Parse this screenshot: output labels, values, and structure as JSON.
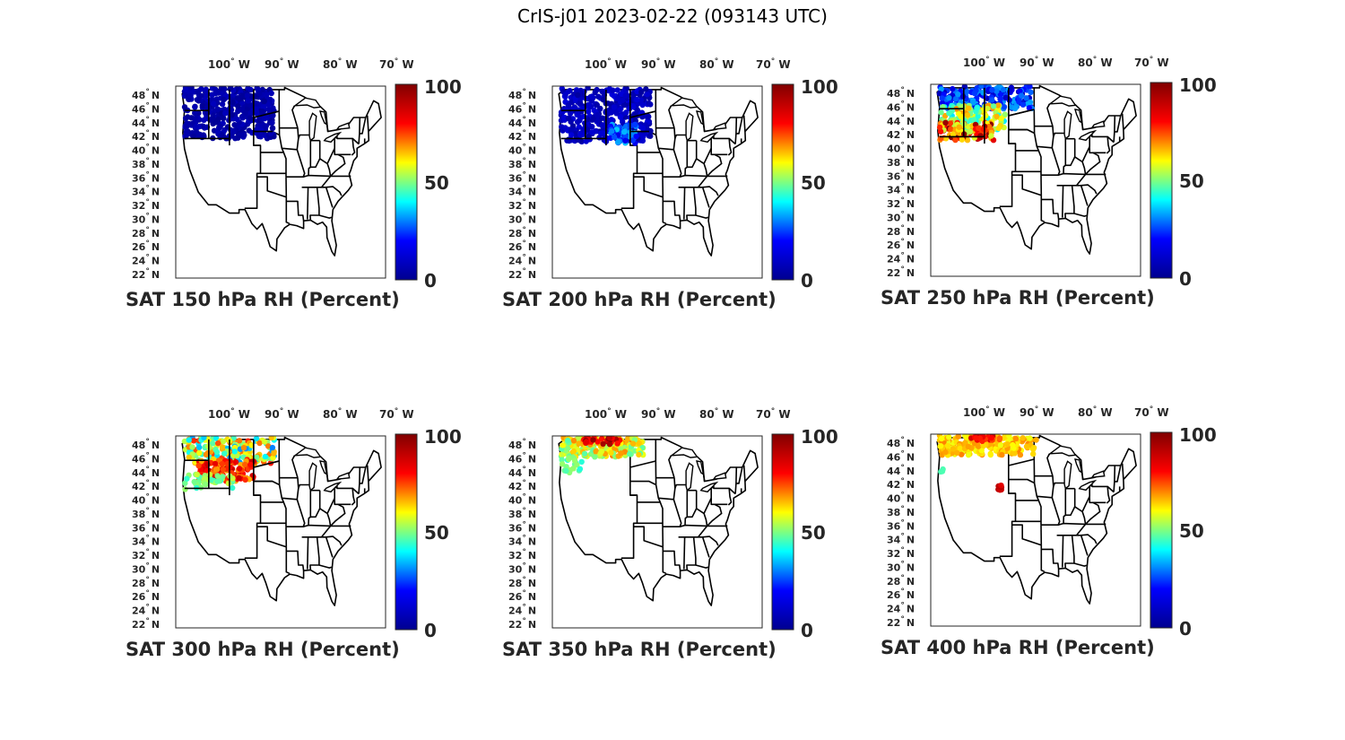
{
  "title": "CrIS-j01 2023-02-22 (093143 UTC)",
  "colorbar": {
    "ticks": [
      "0",
      "50",
      "100"
    ],
    "colormap": "jet",
    "colors": [
      "#00008f",
      "#0000ff",
      "#00ffff",
      "#ffff00",
      "#ff0000",
      "#800000"
    ]
  },
  "map": {
    "lon_ticks": [
      {
        "value": "100",
        "hemi": "W"
      },
      {
        "value": "90",
        "hemi": "W"
      },
      {
        "value": "80",
        "hemi": "W"
      },
      {
        "value": "70",
        "hemi": "W"
      }
    ],
    "lat_ticks": [
      {
        "value": "48",
        "hemi": "N"
      },
      {
        "value": "46",
        "hemi": "N"
      },
      {
        "value": "44",
        "hemi": "N"
      },
      {
        "value": "42",
        "hemi": "N"
      },
      {
        "value": "40",
        "hemi": "N"
      },
      {
        "value": "38",
        "hemi": "N"
      },
      {
        "value": "36",
        "hemi": "N"
      },
      {
        "value": "34",
        "hemi": "N"
      },
      {
        "value": "32",
        "hemi": "N"
      },
      {
        "value": "30",
        "hemi": "N"
      },
      {
        "value": "28",
        "hemi": "N"
      },
      {
        "value": "26",
        "hemi": "N"
      },
      {
        "value": "24",
        "hemi": "N"
      },
      {
        "value": "22",
        "hemi": "N"
      }
    ],
    "degree_symbol": "°"
  },
  "panels": [
    {
      "caption": "SAT 150 hPa RH (Percent)",
      "level": "150",
      "rh": "uniform-low"
    },
    {
      "caption": "SAT 200 hPa RH (Percent)",
      "level": "200",
      "rh": "mostly-low"
    },
    {
      "caption": "SAT 250 hPa RH (Percent)",
      "level": "250",
      "rh": "mixed-high-south"
    },
    {
      "caption": "SAT 300 hPa RH (Percent)",
      "level": "300",
      "rh": "mixed"
    },
    {
      "caption": "SAT 350 hPa RH (Percent)",
      "level": "350",
      "rh": "moist-green"
    },
    {
      "caption": "SAT 400 hPa RH (Percent)",
      "level": "400",
      "rh": "moist-yellow"
    }
  ]
}
